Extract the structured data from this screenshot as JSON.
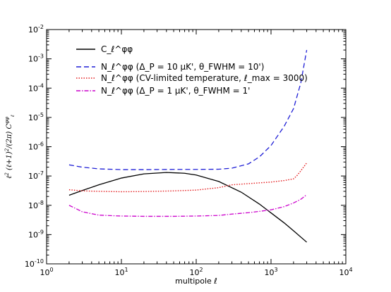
{
  "chart_data": {
    "type": "line",
    "xlabel": "multipole ℓ",
    "ylabel": "ℓ² (ℓ+1)²/(2π) C_ℓ^φφ",
    "xscale": "log",
    "yscale": "log",
    "xlim": [
      1,
      10000
    ],
    "ylim": [
      1e-10,
      0.01
    ],
    "grid": false,
    "legend_position": "top-left",
    "x_ticks": [
      {
        "value": 1,
        "base": "10",
        "exp": "0"
      },
      {
        "value": 10,
        "base": "10",
        "exp": "1"
      },
      {
        "value": 100,
        "base": "10",
        "exp": "2"
      },
      {
        "value": 1000,
        "base": "10",
        "exp": "3"
      },
      {
        "value": 10000,
        "base": "10",
        "exp": "4"
      }
    ],
    "y_ticks": [
      {
        "value": 1e-10,
        "base": "10",
        "exp": "-10"
      },
      {
        "value": 1e-09,
        "base": "10",
        "exp": "-9"
      },
      {
        "value": 1e-08,
        "base": "10",
        "exp": "-8"
      },
      {
        "value": 1e-07,
        "base": "10",
        "exp": "-7"
      },
      {
        "value": 1e-06,
        "base": "10",
        "exp": "-6"
      },
      {
        "value": 1e-05,
        "base": "10",
        "exp": "-5"
      },
      {
        "value": 0.0001,
        "base": "10",
        "exp": "-4"
      },
      {
        "value": 0.001,
        "base": "10",
        "exp": "-3"
      },
      {
        "value": 0.01,
        "base": "10",
        "exp": "-2"
      }
    ],
    "series": [
      {
        "name": "C_ℓ^φφ",
        "color": "#000000",
        "dash": "solid",
        "x": [
          2,
          3,
          5,
          10,
          20,
          40,
          70,
          100,
          200,
          400,
          700,
          1000,
          1500,
          2000,
          3000
        ],
        "y": [
          2.2e-08,
          3.2e-08,
          5e-08,
          8.5e-08,
          1.18e-07,
          1.32e-07,
          1.24e-07,
          1.08e-07,
          6.5e-08,
          2.8e-08,
          1.1e-08,
          5.5e-09,
          2.5e-09,
          1.35e-09,
          5.5e-10
        ]
      },
      {
        "name": "N_ℓ^φφ (Δ_P = 10 μK', θ_FWHM = 10')",
        "color": "#1f1fd6",
        "dash": "dashed",
        "x": [
          2,
          3,
          5,
          10,
          20,
          50,
          100,
          200,
          300,
          500,
          700,
          1000,
          1500,
          2000,
          2500,
          3000
        ],
        "y": [
          2.4e-07,
          2e-07,
          1.75e-07,
          1.65e-07,
          1.65e-07,
          1.68e-07,
          1.68e-07,
          1.7e-07,
          1.85e-07,
          2.6e-07,
          4.5e-07,
          1.1e-06,
          5e-06,
          2e-05,
          0.00015,
          0.002
        ]
      },
      {
        "name": "N_ℓ^φφ (CV-limited temperature, ℓ_max = 3000)",
        "color": "#e41a1c",
        "dash": "dotted",
        "x": [
          2,
          3,
          5,
          10,
          20,
          50,
          100,
          200,
          300,
          500,
          1000,
          1500,
          2000,
          2200,
          2500,
          3000
        ],
        "y": [
          3.4e-08,
          3.1e-08,
          3e-08,
          2.9e-08,
          2.95e-08,
          3.1e-08,
          3.3e-08,
          4e-08,
          5e-08,
          5.5e-08,
          6.2e-08,
          7e-08,
          8e-08,
          1e-07,
          1.5e-07,
          2.8e-07
        ]
      },
      {
        "name": "N_ℓ^φφ (Δ_P = 1 μK', θ_FWHM = 1'",
        "color": "#cc00cc",
        "dash": "dashdot",
        "x": [
          2,
          3,
          5,
          10,
          20,
          50,
          100,
          200,
          300,
          500,
          700,
          1000,
          1500,
          2000,
          2500,
          3000
        ],
        "y": [
          1e-08,
          6e-09,
          4.6e-09,
          4.3e-09,
          4.2e-09,
          4.2e-09,
          4.3e-09,
          4.5e-09,
          5e-09,
          5.6e-09,
          6.2e-09,
          7e-09,
          9e-09,
          1.2e-08,
          1.6e-08,
          2.3e-08
        ]
      }
    ]
  }
}
